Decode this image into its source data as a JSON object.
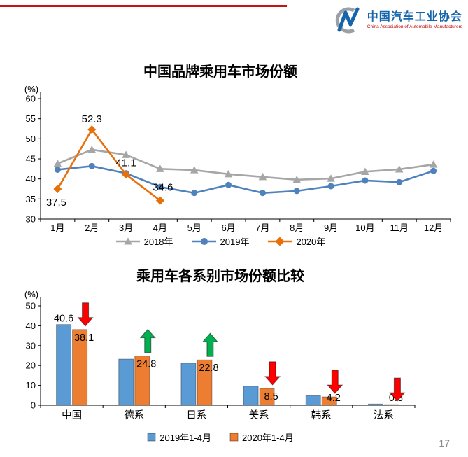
{
  "page_number": "17",
  "header": {
    "org_cn": "中国汽车工业协会",
    "org_en": "China Association of Automobile Manufacturers",
    "logo_blue": "#1565AD",
    "logo_gray": "#9AA0A6",
    "rule_red": "#CC1111"
  },
  "chart_data": [
    {
      "type": "line",
      "title": "中国品牌乘用车市场份额",
      "ylabel": "(%)",
      "ylim": [
        30,
        60
      ],
      "yticks": [
        30,
        35,
        40,
        45,
        50,
        55,
        60
      ],
      "categories": [
        "1月",
        "2月",
        "3月",
        "4月",
        "5月",
        "6月",
        "7月",
        "8月",
        "9月",
        "10月",
        "11月",
        "12月"
      ],
      "legend_position": "bottom",
      "series": [
        {
          "name": "2018年",
          "color": "#A6A6A6",
          "marker": "triangle",
          "values": [
            43.8,
            47.3,
            46.0,
            42.5,
            42.2,
            41.2,
            40.5,
            39.8,
            40.1,
            41.8,
            42.4,
            43.6
          ]
        },
        {
          "name": "2019年",
          "color": "#4F81BD",
          "marker": "circle",
          "values": [
            42.3,
            43.2,
            41.4,
            38.0,
            36.5,
            38.5,
            36.5,
            37.0,
            38.2,
            39.6,
            39.2,
            42.0
          ]
        },
        {
          "name": "2020年",
          "color": "#E8700A",
          "marker": "diamond",
          "values": [
            37.5,
            52.3,
            41.1,
            34.6
          ],
          "labels": [
            {
              "text": "37.5",
              "dx": -2,
              "dy": 24
            },
            {
              "text": "52.3",
              "dx": 0,
              "dy": -10
            },
            {
              "text": "41.1",
              "dx": 0,
              "dy": -12
            },
            {
              "text": "34.6",
              "dx": 4,
              "dy": -14
            }
          ]
        }
      ]
    },
    {
      "type": "bar",
      "title": "乘用车各系别市场份额比较",
      "ylabel": "(%)",
      "ylim": [
        0,
        50
      ],
      "yticks": [
        0,
        10,
        20,
        30,
        40,
        50
      ],
      "categories": [
        "中国",
        "德系",
        "日系",
        "美系",
        "韩系",
        "法系"
      ],
      "legend_position": "bottom",
      "series": [
        {
          "name": "2019年1-4月",
          "color": "#5B9BD5",
          "values": [
            40.6,
            23.2,
            21.2,
            9.6,
            4.8,
            0.6
          ]
        },
        {
          "name": "2020年1-4月",
          "color": "#ED7D31",
          "values": [
            38.1,
            24.8,
            22.8,
            8.5,
            4.2,
            0.3
          ]
        }
      ],
      "bar_labels": [
        {
          "cat": 0,
          "series": 0,
          "text": "40.6"
        },
        {
          "cat": 0,
          "series": 1,
          "text": "38.1"
        },
        {
          "cat": 1,
          "series": 1,
          "text": "24.8"
        },
        {
          "cat": 2,
          "series": 1,
          "text": "22.8"
        },
        {
          "cat": 3,
          "series": 1,
          "text": "8.5"
        },
        {
          "cat": 4,
          "series": 1,
          "text": "4.2"
        },
        {
          "cat": 5,
          "series": 1,
          "text": "0.3"
        }
      ],
      "trend_arrows": [
        {
          "cat": 0,
          "direction": "down",
          "color": "#FF0000"
        },
        {
          "cat": 1,
          "direction": "up",
          "color": "#00B050"
        },
        {
          "cat": 2,
          "direction": "up",
          "color": "#00B050"
        },
        {
          "cat": 3,
          "direction": "down",
          "color": "#FF0000"
        },
        {
          "cat": 4,
          "direction": "down",
          "color": "#FF0000"
        },
        {
          "cat": 5,
          "direction": "down",
          "color": "#FF0000"
        }
      ]
    }
  ]
}
